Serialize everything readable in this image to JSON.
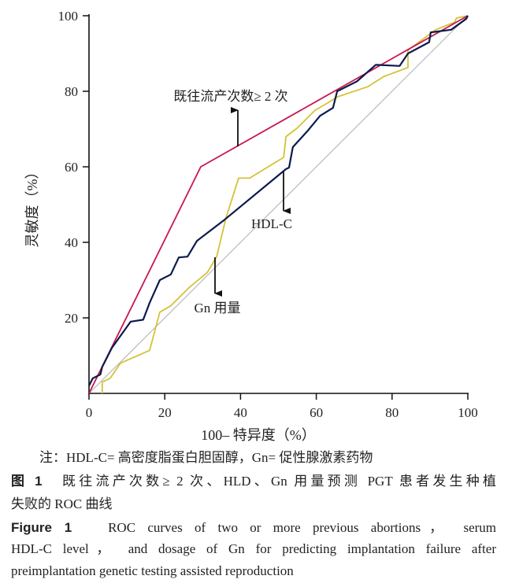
{
  "chart_data": {
    "type": "line",
    "xlabel": "100– 特异度（%）",
    "ylabel": "灵敏度（%）",
    "xlim": [
      0,
      100
    ],
    "ylim": [
      0,
      100
    ],
    "xticks": [
      "0",
      "20",
      "40",
      "60",
      "80",
      "100"
    ],
    "yticks": [
      "20",
      "40",
      "60",
      "80",
      "100"
    ],
    "grid": false,
    "colors": {
      "abortion": "#c8174f",
      "hdl": "#0d1a4f",
      "gn": "#d4c236",
      "reference": "#b9b9b9"
    },
    "reference_line": {
      "x": [
        0,
        100
      ],
      "y": [
        0,
        100
      ]
    },
    "series": [
      {
        "name": "既往流产次数≥ 2 次",
        "key": "abortion",
        "x": [
          0,
          29.5,
          100
        ],
        "y": [
          0,
          60,
          100
        ]
      },
      {
        "name": "HDL-C",
        "key": "hdl",
        "x": [
          0,
          1,
          3,
          3.5,
          6,
          10,
          11,
          14.3,
          16,
          18.7,
          21.6,
          23.7,
          26,
          28.5,
          35.8,
          52,
          52.8,
          53.8,
          57.6,
          61,
          64.4,
          65.5,
          70.7,
          75.7,
          82,
          84.2,
          89.8,
          90.2,
          95.6,
          99.6,
          100
        ],
        "y": [
          2,
          4,
          5,
          7,
          12,
          17.6,
          19,
          19.5,
          24,
          30,
          31.5,
          36,
          36.2,
          40.4,
          46,
          59.4,
          59.8,
          65.2,
          69.4,
          73.5,
          75.6,
          80,
          82.6,
          87,
          86.7,
          90,
          93,
          95.6,
          96.3,
          99.2,
          100
        ]
      },
      {
        "name": "Gn 用量",
        "key": "gn",
        "x": [
          3.5,
          3.5,
          5.6,
          8.3,
          16,
          18.7,
          21.6,
          26.4,
          31.2,
          33.7,
          36.2,
          39.5,
          42.4,
          51.4,
          52,
          54.9,
          59.7,
          63.2,
          65.5,
          73.6,
          77.8,
          84.2,
          84.2,
          91.5,
          96.5,
          97,
          100
        ],
        "y": [
          0,
          3,
          4,
          8,
          11.4,
          21.5,
          23.2,
          28,
          32,
          36.2,
          46.6,
          57,
          57,
          62.5,
          68,
          70.2,
          75,
          77,
          78.5,
          81.2,
          83.9,
          86.3,
          90.9,
          96.3,
          98.3,
          99.4,
          100
        ]
      }
    ],
    "annotations": [
      {
        "text": "既往流产次数≥ 2 次",
        "series": "abortion"
      },
      {
        "text": "HDL-C",
        "series": "hdl"
      },
      {
        "text": "Gn 用量",
        "series": "gn"
      }
    ]
  },
  "caption": {
    "note": "注：HDL-C= 高密度脂蛋白胆固醇，Gn= 促性腺激素药物",
    "zh_label": "图 1",
    "zh_line1": "既往流产次数≥ 2 次、HLD、Gn 用量预测 PGT 患者发生种植",
    "zh_line2": "失败的 ROC 曲线",
    "en_label": "Figure 1",
    "en_line1": "ROC curves of two or more previous abortions， serum",
    "en_line2": "HDL-C level， and dosage of Gn for predicting implantation failure after",
    "en_line3": "preimplantation genetic testing assisted reproduction"
  }
}
